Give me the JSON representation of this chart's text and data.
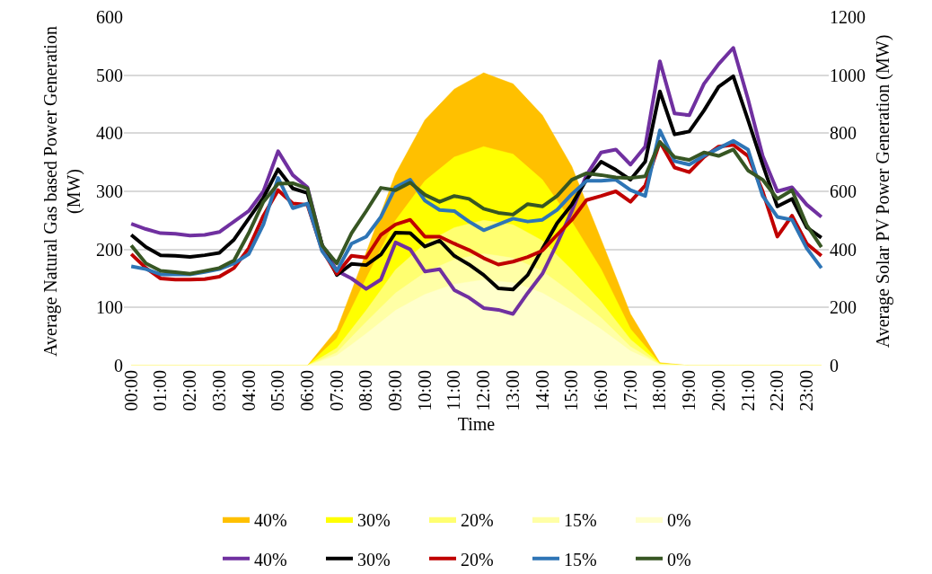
{
  "chart_data": {
    "type": "line",
    "xlabel": "Time",
    "ylabel": "Average Natural Gas based Power Generation (MW)",
    "y2label": "Average Solar PV Power Generation (MW)",
    "categories": [
      "00:00",
      null,
      "01:00",
      null,
      "02:00",
      null,
      "03:00",
      null,
      "04:00",
      null,
      "05:00",
      null,
      "06:00",
      null,
      "07:00",
      null,
      "08:00",
      null,
      "09:00",
      null,
      "10:00",
      null,
      "11:00",
      null,
      "12:00",
      null,
      "13:00",
      null,
      "14:00",
      null,
      "15:00",
      null,
      "16:00",
      null,
      "17:00",
      null,
      "18:00",
      null,
      "19:00",
      null,
      "20:00",
      null,
      "21:00",
      null,
      "22:00",
      null,
      "23:00",
      null
    ],
    "ylim": [
      0,
      600
    ],
    "yticks": [
      0,
      100,
      200,
      300,
      400,
      500,
      600
    ],
    "y2lim": [
      0,
      1200
    ],
    "y2ticks": [
      0,
      200,
      400,
      600,
      800,
      1000,
      1200
    ],
    "grid": "y",
    "legend": "bottom",
    "marker": "none",
    "line_style": "solid",
    "series": [
      {
        "name": "40%",
        "type": "area",
        "axis": "y2",
        "color": "#ffc000",
        "values": [
          0,
          0,
          0,
          0,
          0,
          0,
          0,
          0,
          0,
          0,
          0,
          0,
          0,
          62,
          124,
          257,
          390,
          525,
          660,
          753,
          846,
          899,
          952,
          980,
          1008,
          989,
          970,
          916,
          862,
          774,
          686,
          560,
          434,
          306,
          178,
          94,
          10,
          5,
          0,
          0,
          0,
          0,
          0,
          0,
          0,
          0,
          0,
          0
        ]
      },
      {
        "name": "30%",
        "type": "area",
        "axis": "y2",
        "color": "#ffff00",
        "values": [
          0,
          0,
          0,
          0,
          0,
          0,
          0,
          0,
          0,
          0,
          0,
          0,
          0,
          47,
          94,
          197,
          300,
          400,
          500,
          568,
          636,
          677,
          718,
          736,
          754,
          741,
          728,
          684,
          640,
          568,
          496,
          414,
          332,
          229,
          126,
          67,
          8,
          4,
          0,
          0,
          0,
          0,
          0,
          0,
          0,
          0,
          0,
          0
        ]
      },
      {
        "name": "20%",
        "type": "area",
        "axis": "y2",
        "color": "#ffff70",
        "values": [
          0,
          0,
          0,
          0,
          0,
          0,
          0,
          0,
          0,
          0,
          0,
          0,
          0,
          30,
          60,
          125,
          190,
          260,
          330,
          375,
          420,
          448,
          475,
          488,
          500,
          493,
          485,
          458,
          430,
          380,
          330,
          275,
          220,
          155,
          90,
          48,
          6,
          3,
          0,
          0,
          0,
          0,
          0,
          0,
          0,
          0,
          0,
          0
        ]
      },
      {
        "name": "15%",
        "type": "area",
        "axis": "y2",
        "color": "#ffffa6",
        "values": [
          0,
          0,
          0,
          0,
          0,
          0,
          0,
          0,
          0,
          0,
          0,
          0,
          0,
          22,
          45,
          98,
          150,
          200,
          250,
          285,
          320,
          343,
          365,
          375,
          385,
          378,
          370,
          348,
          325,
          288,
          250,
          208,
          165,
          115,
          65,
          35,
          4,
          2,
          0,
          0,
          0,
          0,
          0,
          0,
          0,
          0,
          0,
          0
        ]
      },
      {
        "name": "0%",
        "type": "area",
        "axis": "y2",
        "color": "#ffffcc",
        "values": [
          0,
          0,
          0,
          0,
          0,
          0,
          0,
          0,
          0,
          0,
          0,
          0,
          0,
          17,
          35,
          72,
          110,
          150,
          190,
          218,
          245,
          263,
          280,
          288,
          295,
          290,
          285,
          268,
          250,
          220,
          190,
          158,
          125,
          88,
          50,
          27,
          3,
          2,
          0,
          0,
          0,
          0,
          0,
          0,
          0,
          0,
          0,
          0
        ]
      },
      {
        "name": "40%",
        "color": "#7030a0",
        "values": [
          244,
          235,
          228,
          227,
          224,
          225,
          230,
          248,
          266,
          300,
          369,
          328,
          307,
          207,
          163,
          150,
          132,
          148,
          212,
          200,
          162,
          166,
          130,
          117,
          99,
          96,
          89,
          125,
          158,
          210,
          266,
          328,
          367,
          372,
          346,
          377,
          524,
          434,
          431,
          485,
          519,
          547,
          459,
          361,
          300,
          307,
          277,
          256
        ]
      },
      {
        "name": "30%",
        "color": "#000000",
        "values": [
          225,
          204,
          190,
          189,
          187,
          190,
          194,
          217,
          253,
          289,
          338,
          305,
          297,
          207,
          156,
          175,
          173,
          191,
          229,
          228,
          205,
          215,
          189,
          174,
          156,
          133,
          131,
          156,
          201,
          245,
          277,
          320,
          351,
          337,
          320,
          351,
          472,
          398,
          403,
          439,
          480,
          498,
          423,
          346,
          274,
          287,
          238,
          220
        ]
      },
      {
        "name": "20%",
        "color": "#c00000",
        "values": [
          192,
          168,
          150,
          148,
          148,
          149,
          153,
          168,
          202,
          258,
          302,
          279,
          277,
          199,
          158,
          189,
          186,
          225,
          243,
          251,
          222,
          222,
          210,
          199,
          185,
          174,
          179,
          187,
          198,
          225,
          251,
          285,
          292,
          300,
          282,
          310,
          385,
          341,
          333,
          359,
          377,
          380,
          361,
          300,
          222,
          258,
          210,
          189
        ]
      },
      {
        "name": "15%",
        "color": "#2e75b6",
        "values": [
          171,
          166,
          157,
          157,
          157,
          161,
          166,
          176,
          192,
          243,
          323,
          271,
          279,
          197,
          163,
          210,
          222,
          256,
          307,
          320,
          284,
          268,
          266,
          248,
          233,
          243,
          253,
          248,
          251,
          268,
          295,
          318,
          318,
          320,
          302,
          292,
          405,
          352,
          346,
          361,
          374,
          387,
          372,
          292,
          256,
          251,
          202,
          168
        ]
      },
      {
        "name": "0%",
        "color": "#375623",
        "values": [
          207,
          176,
          163,
          161,
          158,
          163,
          168,
          181,
          228,
          282,
          313,
          314,
          305,
          207,
          176,
          228,
          266,
          306,
          302,
          315,
          294,
          282,
          292,
          287,
          270,
          263,
          260,
          278,
          274,
          292,
          320,
          331,
          328,
          324,
          323,
          326,
          385,
          359,
          354,
          367,
          361,
          372,
          336,
          320,
          287,
          302,
          242,
          204
        ]
      }
    ]
  }
}
